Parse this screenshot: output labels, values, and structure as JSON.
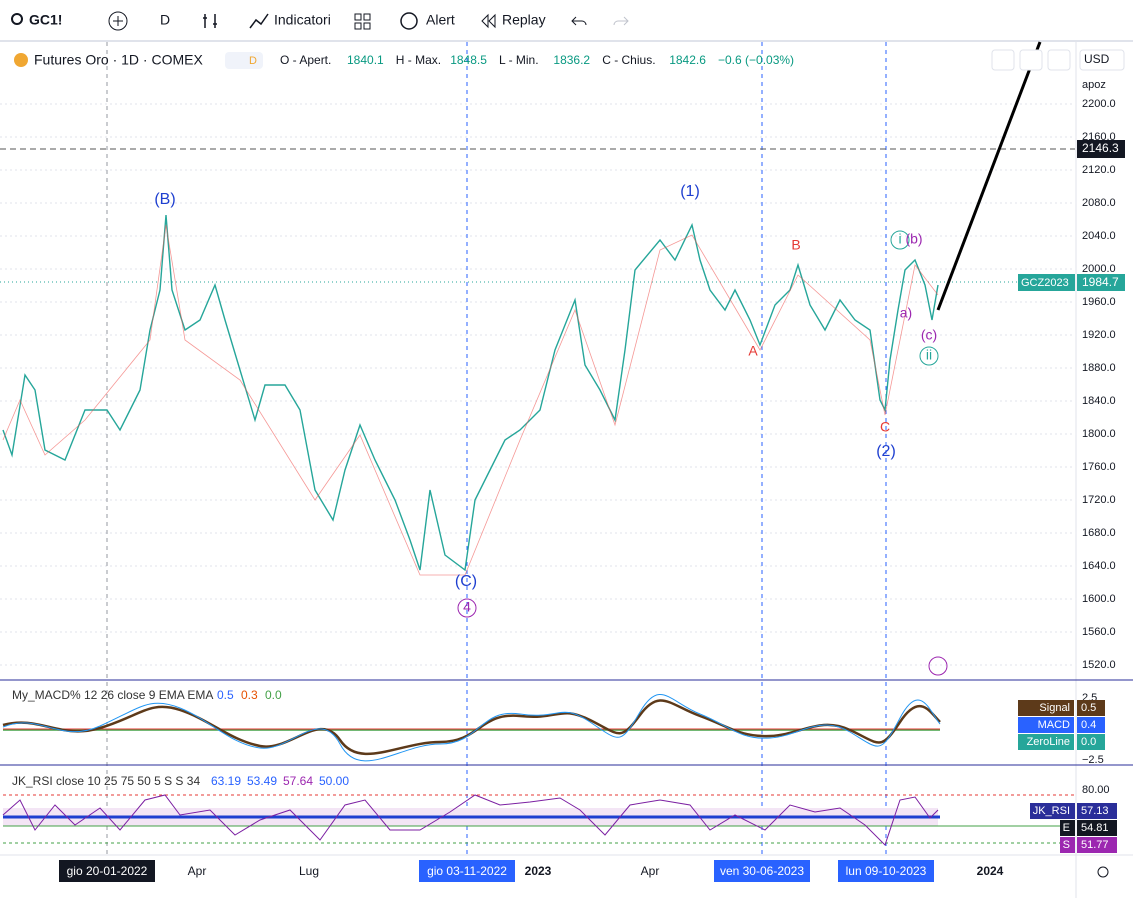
{
  "toolbar": {
    "symbol": "GC1!",
    "interval": "D",
    "indicators": "Indicatori",
    "alert": "Alert",
    "replay": "Replay"
  },
  "legend": {
    "title": "Futures Oro · 1D · COMEX",
    "badge": "D",
    "ohlc": [
      [
        "O - Apert.",
        "1840.1"
      ],
      [
        "H - Max.",
        "1848.5"
      ],
      [
        "L - Min.",
        "1836.2"
      ],
      [
        "C - Chius.",
        "1842.6"
      ]
    ],
    "change": "−0.6 (−0.03%)"
  },
  "price_axis": {
    "currency": "USD",
    "mode": "apoz",
    "ticks": [
      "2200.0",
      "2160.0",
      "2120.0",
      "2080.0",
      "2040.0",
      "2000.0",
      "1960.0",
      "1920.0",
      "1880.0",
      "1840.0",
      "1800.0",
      "1760.0",
      "1720.0",
      "1680.0",
      "1640.0",
      "1600.0",
      "1560.0",
      "1520.0"
    ],
    "target": "2146.3",
    "symbol_badge": "GCZ2023",
    "last": "1984.7"
  },
  "waves": [
    "(B)",
    "(1)",
    "B",
    "A",
    "C",
    "(2)",
    "i",
    "(b)",
    "a)",
    "(c)",
    "ii",
    "(C)",
    "4"
  ],
  "macd": {
    "label": "My_MACD% 12 26 close 9 EMA EMA",
    "values": [
      "0.5",
      "0.3",
      "0.0"
    ],
    "axis": [
      "2.5",
      "−2.5"
    ],
    "badges": [
      [
        "Signal",
        "0.5"
      ],
      [
        "MACD",
        "0.4"
      ],
      [
        "ZeroLine",
        "0.0"
      ]
    ]
  },
  "rsi": {
    "label": "JK_RSI close 10 25 75 50 5 S S 34",
    "values": [
      "63.19",
      "53.49",
      "57.64",
      "50.00"
    ],
    "axis": "80.00",
    "badges": [
      [
        "JK_RSI",
        "57.13"
      ],
      [
        "E",
        "54.81"
      ],
      [
        "S",
        "51.77"
      ]
    ]
  },
  "time_axis": [
    "gio 20-01-2022",
    "Apr",
    "Lug",
    "gio 03-11-2022",
    "2023",
    "Apr",
    "ven 30-06-2023",
    "lun 09-10-2023",
    "2024"
  ]
}
